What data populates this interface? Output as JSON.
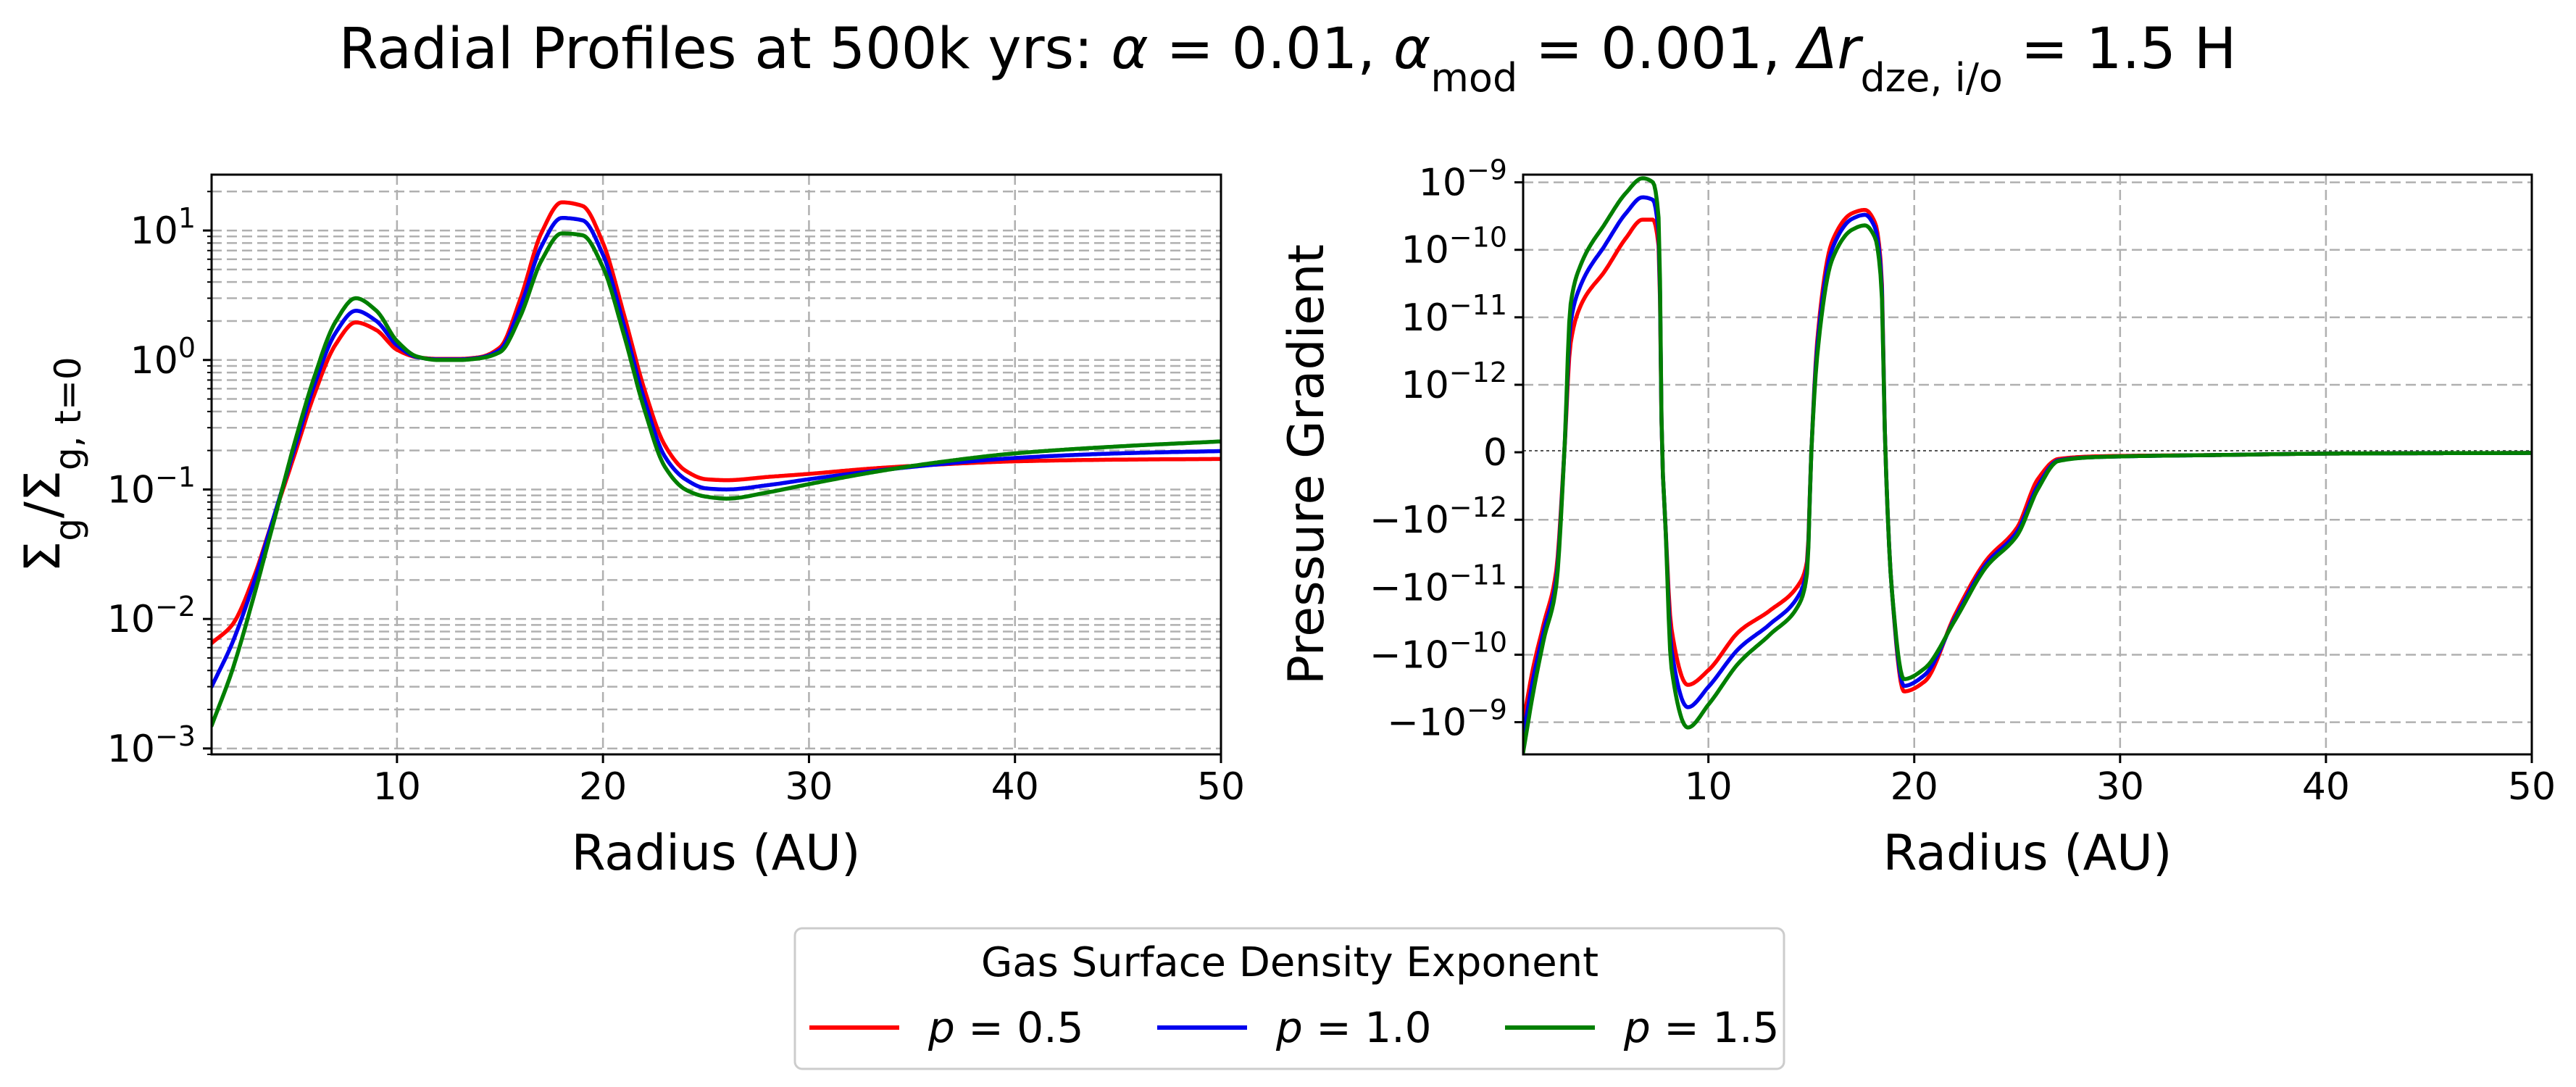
{
  "figure": {
    "title_prefix": "Radial Profiles at 500k yrs: ",
    "title_params": [
      {
        "sym": "α",
        "sub": "",
        "val": " = 0.01, "
      },
      {
        "sym": "α",
        "sub": "mod",
        "val": " = 0.001, "
      },
      {
        "sym": "Δr",
        "sub": "dze, i/o",
        "val": " = 1.5 H"
      }
    ]
  },
  "colors": {
    "p05": "#ff0000",
    "p10": "#0000ee",
    "p15": "#007f00"
  },
  "legend": {
    "title": "Gas Surface Density Exponent",
    "entries": [
      {
        "label": "p = 0.5",
        "color": "#ff0000"
      },
      {
        "label": "p = 1.0",
        "color": "#0000ee"
      },
      {
        "label": "p = 1.5",
        "color": "#007f00"
      }
    ]
  },
  "chart_data": [
    {
      "type": "line",
      "ylabel": "Σg/Σg, t=0",
      "xlabel": "Radius (AU)",
      "yscale": "log",
      "xlim": [
        1,
        50
      ],
      "ylim": [
        0.0009,
        27
      ],
      "xticks": [
        10,
        20,
        30,
        40,
        50
      ],
      "yticks": [
        {
          "v": 0.001,
          "base": "10",
          "exp": "−3"
        },
        {
          "v": 0.01,
          "base": "10",
          "exp": "−2"
        },
        {
          "v": 0.1,
          "base": "10",
          "exp": "−1"
        },
        {
          "v": 1,
          "base": "10",
          "exp": "0"
        },
        {
          "v": 10,
          "base": "10",
          "exp": "1"
        }
      ],
      "series": [
        {
          "name": "p = 0.5",
          "color": "#ff0000",
          "x": [
            1,
            2,
            3,
            4,
            5,
            6,
            7,
            8,
            9,
            10,
            11,
            12,
            13,
            14,
            15,
            16,
            17,
            18,
            19,
            20,
            21,
            22,
            23,
            24,
            25,
            26,
            28,
            30,
            33,
            36,
            40,
            45,
            50
          ],
          "y": [
            0.0065,
            0.009,
            0.02,
            0.06,
            0.18,
            0.55,
            1.3,
            1.95,
            1.7,
            1.2,
            1.05,
            1.02,
            1.02,
            1.05,
            1.25,
            3.0,
            9.5,
            16.5,
            15.5,
            8.0,
            2.3,
            0.6,
            0.22,
            0.14,
            0.12,
            0.118,
            0.125,
            0.132,
            0.145,
            0.155,
            0.165,
            0.17,
            0.172
          ]
        },
        {
          "name": "p = 1.0",
          "color": "#0000ee",
          "x": [
            1,
            2,
            3,
            4,
            5,
            6,
            7,
            8,
            9,
            10,
            11,
            12,
            13,
            14,
            15,
            16,
            17,
            18,
            19,
            20,
            21,
            22,
            23,
            24,
            25,
            26,
            28,
            30,
            33,
            36,
            40,
            45,
            50
          ],
          "y": [
            0.003,
            0.0065,
            0.018,
            0.06,
            0.2,
            0.65,
            1.6,
            2.4,
            2.0,
            1.3,
            1.05,
            1.01,
            1.01,
            1.04,
            1.2,
            2.6,
            7.5,
            12.5,
            12.0,
            6.5,
            1.9,
            0.5,
            0.18,
            0.12,
            0.102,
            0.1,
            0.108,
            0.12,
            0.138,
            0.155,
            0.175,
            0.19,
            0.198
          ]
        },
        {
          "name": "p = 1.5",
          "color": "#007f00",
          "x": [
            1,
            2,
            3,
            4,
            5,
            6,
            7,
            8,
            9,
            10,
            11,
            12,
            13,
            14,
            15,
            16,
            17,
            18,
            19,
            20,
            21,
            22,
            23,
            24,
            25,
            26,
            28,
            30,
            33,
            36,
            40,
            45,
            50
          ],
          "y": [
            0.0015,
            0.004,
            0.014,
            0.055,
            0.22,
            0.75,
            1.95,
            3.0,
            2.4,
            1.4,
            1.06,
            1.0,
            1.0,
            1.03,
            1.15,
            2.2,
            5.8,
            9.5,
            9.2,
            5.2,
            1.6,
            0.42,
            0.15,
            0.1,
            0.088,
            0.085,
            0.095,
            0.11,
            0.135,
            0.16,
            0.19,
            0.215,
            0.235
          ]
        }
      ]
    },
    {
      "type": "line",
      "ylabel": "Pressure Gradient",
      "xlabel": "Radius (AU)",
      "yscale": "symlog",
      "linthresh": 1e-12,
      "xlim": [
        1,
        50
      ],
      "ylim": [
        -3e-09,
        1.3e-09
      ],
      "xticks": [
        10,
        20,
        30,
        40,
        50
      ],
      "yticks": [
        {
          "v": 1e-09,
          "base": "10",
          "exp": "−9"
        },
        {
          "v": 1e-10,
          "base": "10",
          "exp": "−10"
        },
        {
          "v": 1e-11,
          "base": "10",
          "exp": "−11"
        },
        {
          "v": 1e-12,
          "base": "10",
          "exp": "−12"
        },
        {
          "v": 0,
          "base": "0",
          "exp": ""
        },
        {
          "v": -1e-12,
          "base": "−10",
          "exp": "−12"
        },
        {
          "v": -1e-11,
          "base": "−10",
          "exp": "−11"
        },
        {
          "v": -1e-10,
          "base": "−10",
          "exp": "−10"
        },
        {
          "v": -1e-09,
          "base": "−10",
          "exp": "−9"
        }
      ],
      "series": [
        {
          "name": "p = 0.5",
          "color": "#ff0000",
          "x": [
            1,
            1.5,
            2.0,
            2.6,
            3.0,
            3.3,
            3.8,
            5.0,
            6.0,
            6.8,
            7.3,
            7.6,
            7.75,
            7.9,
            8.2,
            9.0,
            10.0,
            11.5,
            13.0,
            14.4,
            14.8,
            15.0,
            15.3,
            16.0,
            17.0,
            17.6,
            18.1,
            18.4,
            18.6,
            18.9,
            19.5,
            20.5,
            22.0,
            23.5,
            25.0,
            26.0,
            27.0,
            29,
            35,
            40,
            50
          ],
          "y": [
            -1e-09,
            -1.5e-10,
            -3.5e-11,
            -6e-12,
            0,
            4e-12,
            1.5e-11,
            5e-11,
            1.5e-10,
            2.8e-10,
            2.8e-10,
            1e-10,
            0,
            -1e-12,
            -4e-11,
            -2.8e-10,
            -1.7e-10,
            -4.5e-11,
            -2.2e-11,
            -9e-12,
            -4e-12,
            0,
            5e-12,
            1.3e-10,
            3.5e-10,
            3.9e-10,
            2.5e-10,
            5e-11,
            0,
            -1e-11,
            -3.5e-10,
            -2.5e-10,
            -2.5e-11,
            -4e-12,
            -1.3e-12,
            -4e-13,
            -1e-13,
            -6e-14,
            -4e-14,
            -2e-14,
            -1e-14
          ]
        },
        {
          "name": "p = 1.0",
          "color": "#0000ee",
          "x": [
            1,
            1.5,
            2.0,
            2.6,
            3.0,
            3.3,
            3.8,
            5.0,
            6.0,
            6.8,
            7.3,
            7.6,
            7.75,
            7.9,
            8.2,
            9.0,
            10.0,
            11.5,
            13.0,
            14.4,
            14.8,
            15.0,
            15.3,
            16.0,
            17.0,
            17.6,
            18.1,
            18.4,
            18.6,
            18.9,
            19.5,
            20.5,
            22.0,
            23.5,
            25.0,
            26.0,
            27.0,
            29,
            35,
            40,
            50
          ],
          "y": [
            -1.6e-09,
            -2.2e-10,
            -4.5e-11,
            -8e-12,
            0,
            8e-12,
            3e-11,
            1.2e-10,
            3.5e-10,
            6e-10,
            5.5e-10,
            1.5e-10,
            0,
            -1e-12,
            -8e-11,
            -6e-10,
            -3e-10,
            -8e-11,
            -3.5e-11,
            -1.3e-11,
            -5e-12,
            0,
            4e-12,
            1e-10,
            2.9e-10,
            3.3e-10,
            2.1e-10,
            4e-11,
            0,
            -1e-11,
            -2.9e-10,
            -2e-10,
            -2.8e-11,
            -4.5e-12,
            -1.5e-12,
            -5e-13,
            -1.2e-13,
            -7e-14,
            -4e-14,
            -2e-14,
            -1e-14
          ]
        },
        {
          "name": "p = 1.5",
          "color": "#007f00",
          "x": [
            1,
            1.5,
            2.0,
            2.6,
            3.0,
            3.3,
            3.8,
            5.0,
            6.0,
            6.8,
            7.3,
            7.6,
            7.75,
            7.9,
            8.2,
            9.0,
            10.0,
            11.5,
            13.0,
            14.4,
            14.8,
            15.0,
            15.3,
            16.0,
            17.0,
            17.6,
            18.1,
            18.4,
            18.6,
            18.9,
            19.5,
            20.5,
            22.0,
            23.5,
            25.0,
            26.0,
            27.0,
            29,
            35,
            40,
            50
          ],
          "y": [
            -2.8e-09,
            -3.5e-10,
            -6e-11,
            -1e-11,
            0,
            1.5e-11,
            6e-11,
            2.5e-10,
            7e-10,
            1.15e-09,
            1e-09,
            2.5e-10,
            0,
            -1e-12,
            -1.5e-10,
            -1.2e-09,
            -5.5e-10,
            -1.3e-10,
            -5e-11,
            -1.8e-11,
            -6e-12,
            0,
            3e-12,
            7e-11,
            2e-10,
            2.3e-10,
            1.5e-10,
            3e-11,
            0,
            -1e-11,
            -2.3e-10,
            -1.6e-10,
            -3e-11,
            -5e-12,
            -1.7e-12,
            -5.5e-13,
            -1.3e-13,
            -7e-14,
            -4e-14,
            -2e-14,
            -1e-14
          ]
        }
      ]
    }
  ]
}
